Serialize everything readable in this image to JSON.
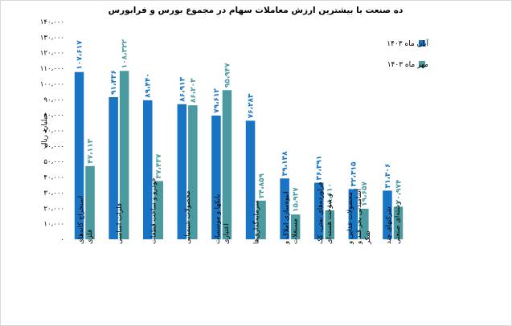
{
  "chart_data": {
    "type": "bar",
    "title": "ده صنعت با بیشترین ارزش معاملات سهام در مجموع بورس و فرابورس",
    "ylabel": "میلیارد ریال",
    "ylim": [
      0,
      140000
    ],
    "yticks": [
      0,
      10000,
      20000,
      30000,
      40000,
      50000,
      60000,
      70000,
      80000,
      90000,
      100000,
      110000,
      120000,
      130000,
      140000
    ],
    "ytick_labels": [
      "۰",
      "۱۰،۰۰۰",
      "۲۰،۰۰۰",
      "۳۰،۰۰۰",
      "۴۰،۰۰۰",
      "۵۰،۰۰۰",
      "۶۰،۰۰۰",
      "۷۰،۰۰۰",
      "۸۰،۰۰۰",
      "۹۰،۰۰۰",
      "۱۰۰،۰۰۰",
      "۱۱۰،۰۰۰",
      "۱۲۰،۰۰۰",
      "۱۳۰،۰۰۰",
      "۱۴۰،۰۰۰"
    ],
    "categories": [
      [
        "استخراج کانه‌های",
        "فلزی"
      ],
      [
        "فلزات اساسی"
      ],
      [
        "خودرو و ساخت قطعات"
      ],
      [
        "محصولات شیمیایی"
      ],
      [
        "بانکها و موسسات",
        "اعتباری"
      ],
      [
        "سرمایه‌گذاری‌ها"
      ],
      [
        "انبوه‌سازی املاک و",
        "مستغلات"
      ],
      [
        "فراورده‌های نفتی، کک",
        "و سوخت هسته‌ای"
      ],
      [
        "محصولات غذایی و",
        "آشامیدنی بجز قند و",
        "شکر"
      ],
      [
        "شرکتهای چند",
        "رشته‌ای صنعتی"
      ]
    ],
    "series": [
      {
        "name": "آبان ماه ۱۴۰۳",
        "color": "#1a74c4",
        "values": [
          107617,
          91436,
          89440,
          86913,
          79612,
          76283,
          39138,
          36391,
          32315,
          31306
        ],
        "labels": [
          "۱۰۷،۶۱۷",
          "۹۱،۴۳۶",
          "۸۹،۴۴۰",
          "۸۶،۹۱۳",
          "۷۹،۶۱۲",
          "۷۶،۲۸۳",
          "۳۹،۱۳۸",
          "۳۶،۳۹۱",
          "۳۲،۳۱۵",
          "۳۱،۳۰۶"
        ]
      },
      {
        "name": "مهر ماه ۱۴۰۳",
        "color": "#4a9aa0",
        "values": [
          47113,
          108322,
          37437,
          86203,
          95947,
          24859,
          15937,
          18610,
          19657,
          20974
        ],
        "labels": [
          "۴۷،۱۱۳",
          "۱۰۸،۳۲۲",
          "۳۷،۴۳۷",
          "۸۶،۲۰۳",
          "۹۵،۹۴۷",
          "۲۴،۸۵۹",
          "۱۵،۹۳۷",
          "۱۸،۶۱۰",
          "۱۹،۶۵۷",
          "۲۰،۹۷۴"
        ]
      }
    ],
    "grid": false,
    "legend_position": "right"
  }
}
